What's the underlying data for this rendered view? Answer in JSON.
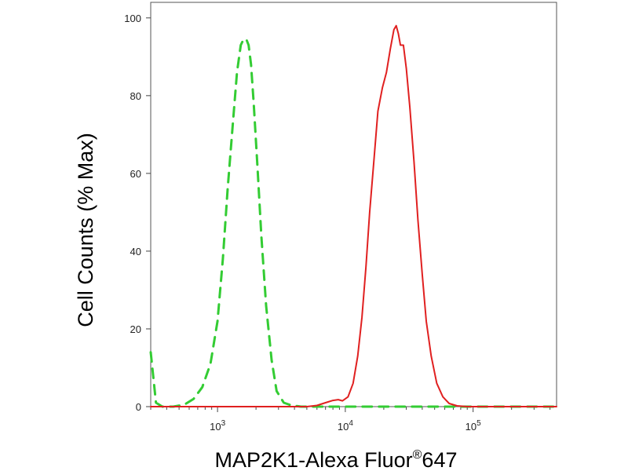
{
  "chart_data": {
    "type": "line",
    "title": "",
    "xlabel": "MAP2K1-Alexa Fluor",
    "xlabel_superscript": "®",
    "xlabel_suffix": "647",
    "ylabel": "Cell Counts (% Max)",
    "x_scale": "log",
    "xlim": [
      300,
      450000
    ],
    "ylim": [
      0,
      104
    ],
    "x_ticks": [
      {
        "value": 1000,
        "base": "10",
        "exp": "3"
      },
      {
        "value": 10000,
        "base": "10",
        "exp": "4"
      },
      {
        "value": 100000,
        "base": "10",
        "exp": "5"
      }
    ],
    "y_ticks": [
      0,
      20,
      40,
      60,
      80,
      100
    ],
    "grid": false,
    "series": [
      {
        "color": "#33cc33",
        "dash": true,
        "x": [
          300,
          330,
          370,
          450,
          550,
          650,
          760,
          880,
          1000,
          1100,
          1200,
          1320,
          1420,
          1520,
          1600,
          1680,
          1750,
          1830,
          1920,
          2050,
          2200,
          2400,
          2650,
          2900,
          3300,
          3800,
          4500,
          6000,
          10000,
          20000,
          100000,
          450000
        ],
        "y": [
          14,
          1,
          0,
          0,
          0.5,
          2,
          5,
          11,
          22,
          38,
          56,
          73,
          86,
          93,
          94.5,
          94.5,
          93,
          88,
          78,
          62,
          44,
          26,
          12,
          4,
          1,
          0.3,
          0,
          0,
          0,
          0,
          0,
          0
        ]
      },
      {
        "color": "#e02020",
        "dash": false,
        "x": [
          300,
          5000,
          6000,
          7000,
          8000,
          8800,
          9500,
          10500,
          11500,
          12500,
          13500,
          14500,
          15500,
          16800,
          18000,
          19500,
          21000,
          22500,
          24000,
          25000,
          26000,
          27000,
          28500,
          30000,
          32000,
          34500,
          37000,
          40000,
          43000,
          47000,
          52000,
          58000,
          65000,
          75000,
          90000,
          120000,
          450000
        ],
        "y": [
          0,
          0,
          0.3,
          1,
          1.6,
          1.8,
          1.5,
          2.5,
          6,
          13,
          23,
          36,
          50,
          64,
          76,
          82,
          86,
          92,
          97,
          98,
          96,
          93,
          93,
          87,
          77,
          63,
          48,
          34,
          22,
          13,
          6,
          2.5,
          0.8,
          0.2,
          0,
          0,
          0
        ]
      }
    ]
  }
}
